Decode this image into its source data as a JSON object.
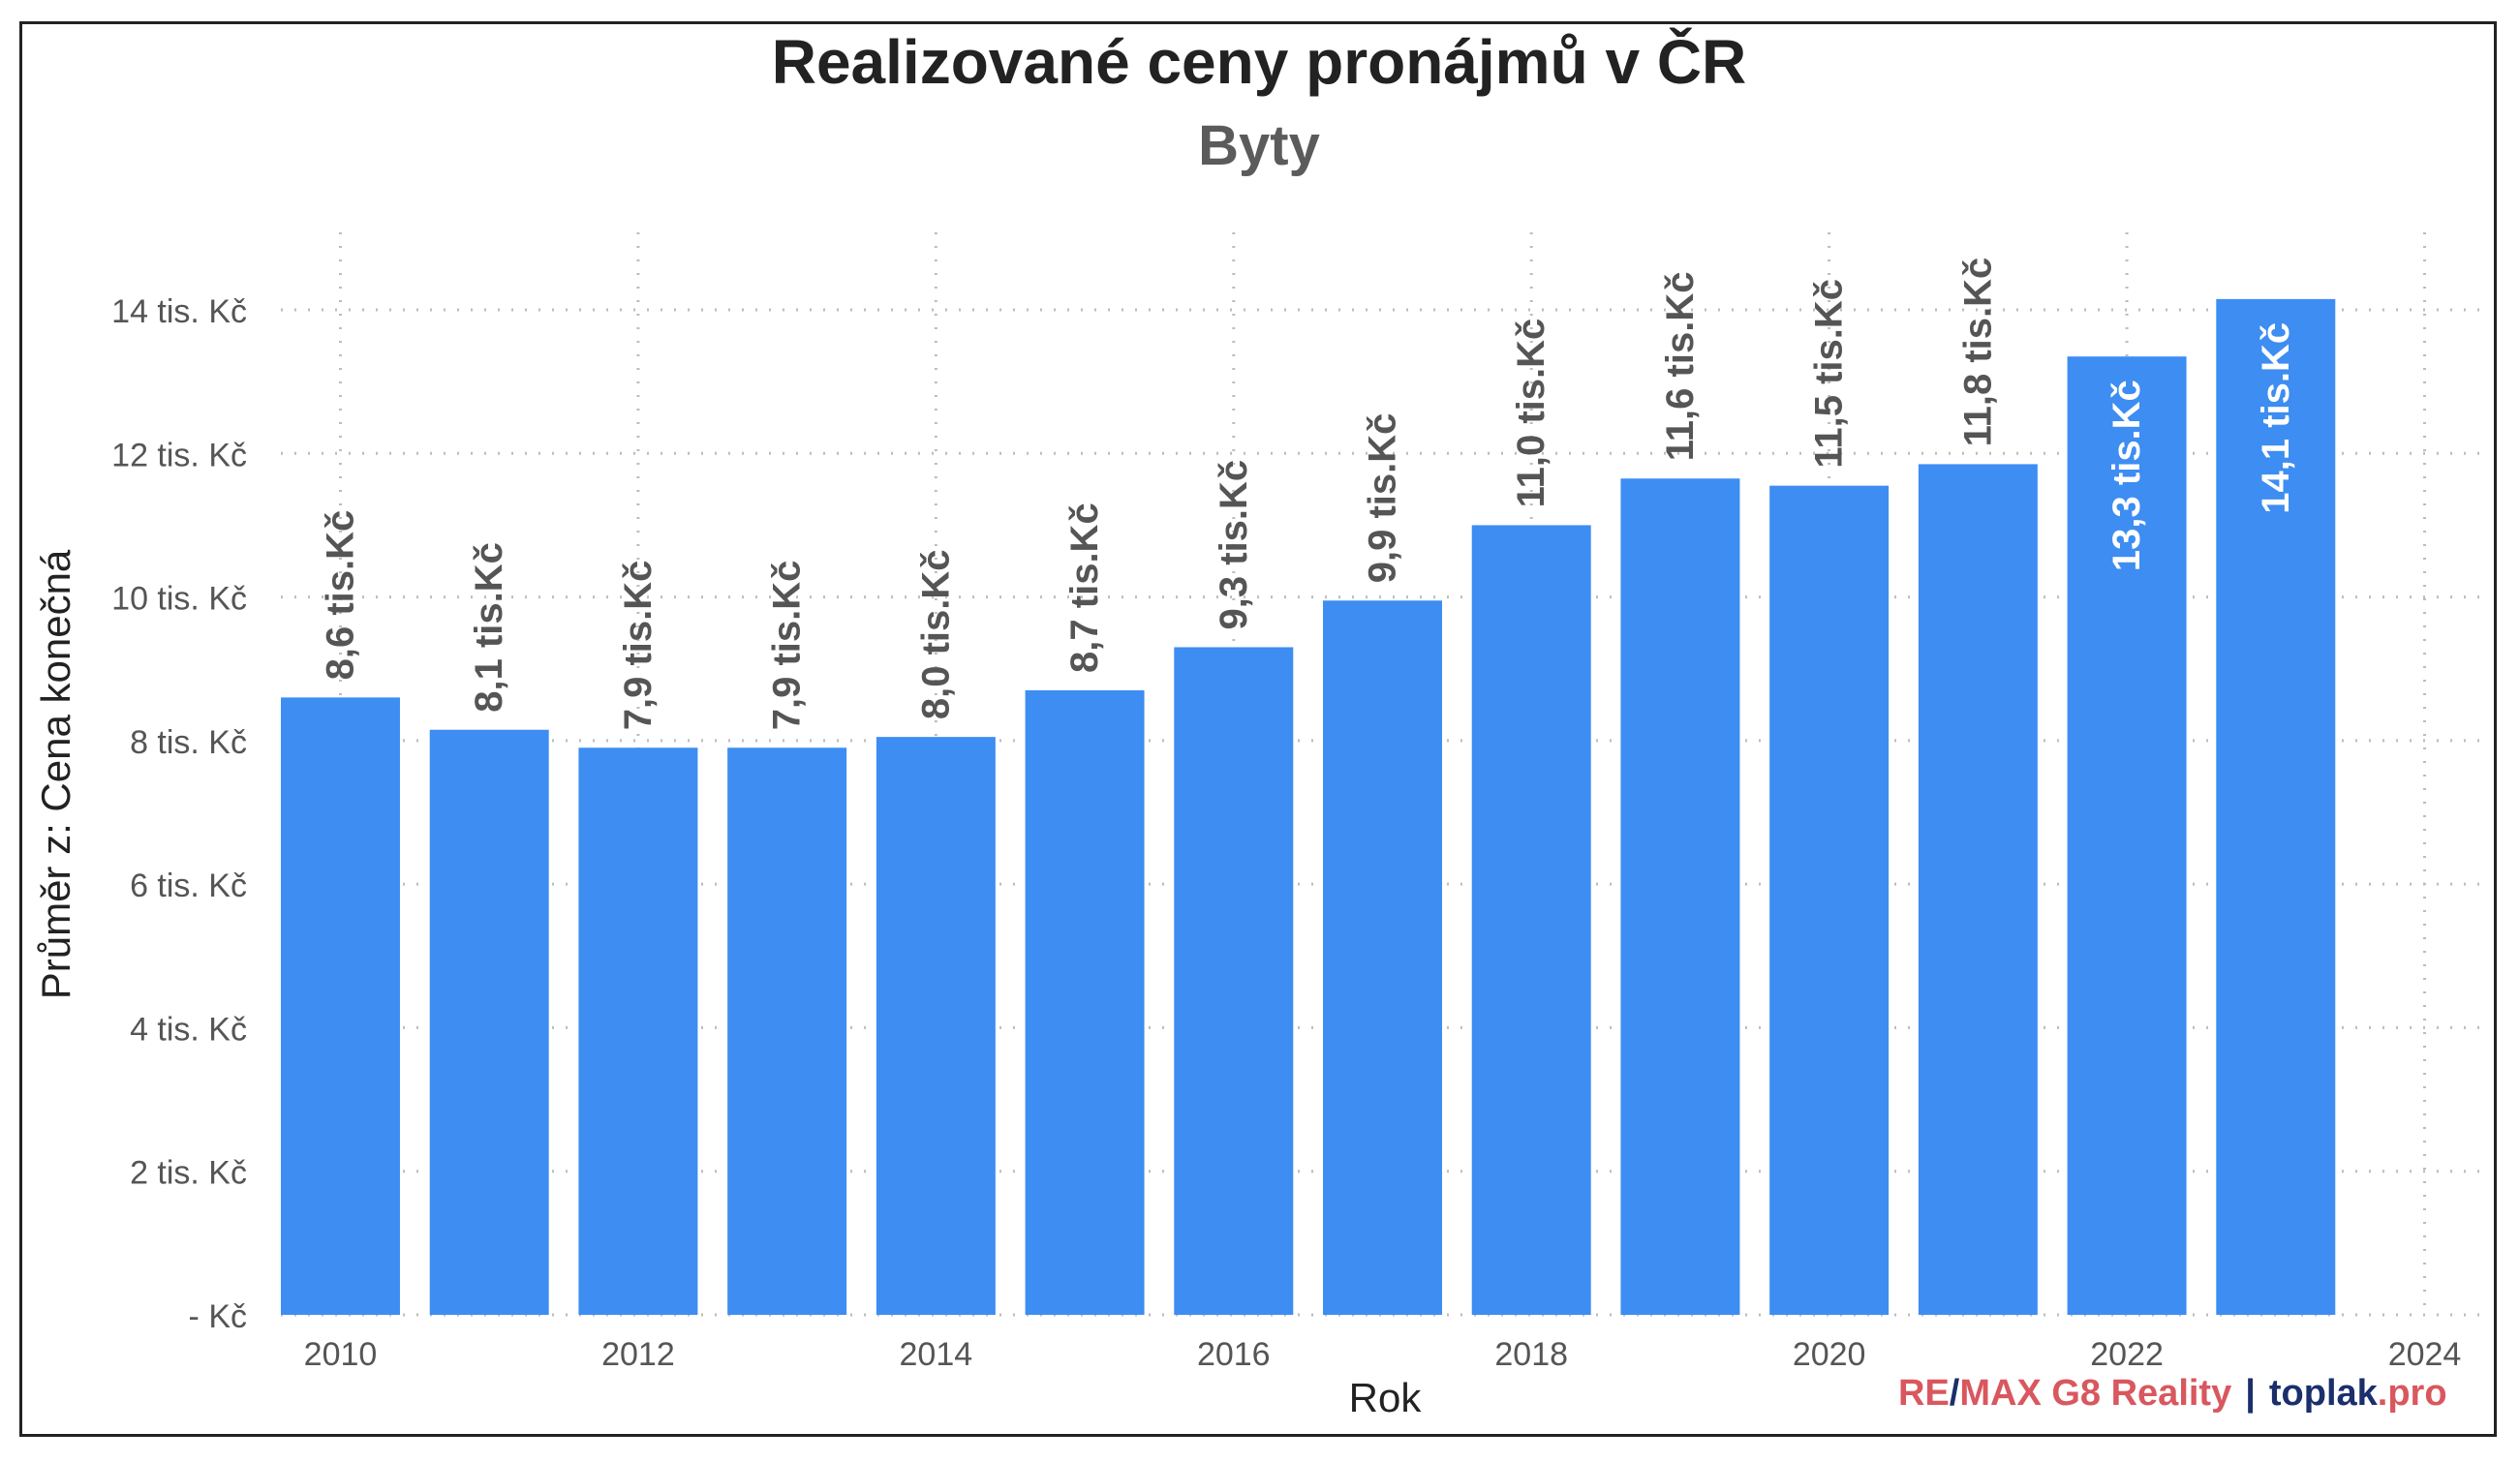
{
  "chart_data": {
    "type": "bar",
    "title": "Realizované ceny pronájmů v ČR",
    "subtitle": "Byty",
    "xlabel": "Rok",
    "ylabel": "Průměr z: Cena konečná",
    "categories": [
      2010,
      2011,
      2012,
      2013,
      2014,
      2015,
      2016,
      2017,
      2018,
      2019,
      2020,
      2021,
      2022,
      2023
    ],
    "values": [
      8.6,
      8.15,
      7.9,
      7.9,
      8.05,
      8.7,
      9.3,
      9.95,
      11.0,
      11.65,
      11.55,
      11.85,
      13.35,
      14.15
    ],
    "value_labels": [
      "8,6 tis.Kč",
      "8,1 tis.Kč",
      "7,9 tis.Kč",
      "7,9 tis.Kč",
      "8,0 tis.Kč",
      "8,7 tis.Kč",
      "9,3 tis.Kč",
      "9,9 tis.Kč",
      "11,0 tis.Kč",
      "11,6 tis.Kč",
      "11,5 tis.Kč",
      "11,8 tis.Kč",
      "13,3 tis.Kč",
      "14,1 tis.Kč"
    ],
    "label_inside": [
      false,
      false,
      false,
      false,
      false,
      false,
      false,
      false,
      false,
      false,
      false,
      false,
      true,
      true
    ],
    "x_ticks": [
      2010,
      2012,
      2014,
      2016,
      2018,
      2020,
      2022,
      2024
    ],
    "xlim": [
      2009.6,
      2024.4
    ],
    "y_ticks": [
      0,
      2,
      4,
      6,
      8,
      10,
      12,
      14
    ],
    "y_tick_labels": [
      "- Kč",
      "2 tis. Kč",
      "4 tis. Kč",
      "6 tis. Kč",
      "8 tis. Kč",
      "10 tis. Kč",
      "12 tis. Kč",
      "14 tis. Kč"
    ],
    "ylim": [
      0,
      14
    ],
    "grid": true,
    "colors": {
      "bar": "#3d8df2",
      "label_outside": "#555555",
      "label_inside": "#ffffff",
      "grid": "#bdbdbd",
      "title": "#222222",
      "subtitle": "#5b5b5b",
      "tick": "#555555",
      "axis_title": "#222222"
    }
  },
  "branding": {
    "remax_a": "RE",
    "remax_slash": "/",
    "remax_b": "MAX G8 Reality",
    "separator": "|",
    "toplak": "toplak",
    "toplak_suffix": ".pro"
  }
}
